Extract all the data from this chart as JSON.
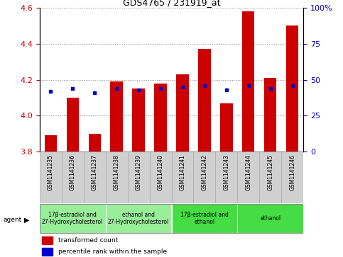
{
  "title": "GDS4765 / 231919_at",
  "samples": [
    "GSM1141235",
    "GSM1141236",
    "GSM1141237",
    "GSM1141238",
    "GSM1141239",
    "GSM1141240",
    "GSM1141241",
    "GSM1141242",
    "GSM1141243",
    "GSM1141244",
    "GSM1141245",
    "GSM1141246"
  ],
  "transformed_count": [
    3.89,
    4.1,
    3.9,
    4.19,
    4.15,
    4.18,
    4.23,
    4.37,
    4.07,
    4.58,
    4.21,
    4.5
  ],
  "percentile_rank_pct": [
    42,
    44,
    41,
    44,
    43,
    44,
    45,
    46,
    43,
    46,
    44,
    46
  ],
  "ylim_left": [
    3.8,
    4.6
  ],
  "ylim_right": [
    0,
    100
  ],
  "yticks_left": [
    3.8,
    4.0,
    4.2,
    4.4,
    4.6
  ],
  "yticks_right": [
    0,
    25,
    50,
    75,
    100
  ],
  "bar_color": "#cc0000",
  "dot_color": "#0000cc",
  "baseline": 3.8,
  "agents": [
    {
      "label": "17β-estradiol and\n27-Hydroxycholesterol",
      "start": 0,
      "end": 3,
      "color": "#99ee99"
    },
    {
      "label": "ethanol and\n27-Hydroxycholesterol",
      "start": 3,
      "end": 6,
      "color": "#99ee99"
    },
    {
      "label": "17β-estradiol and\nethanol",
      "start": 6,
      "end": 9,
      "color": "#44dd44"
    },
    {
      "label": "ethanol",
      "start": 9,
      "end": 12,
      "color": "#44dd44"
    }
  ],
  "legend_red": "transformed count",
  "legend_blue": "percentile rank within the sample",
  "axis_color_left": "#cc0000",
  "axis_color_right": "#0000cc",
  "grid_color": "#888888",
  "cell_bg": "#d0d0d0",
  "cell_line": "#aaaaaa"
}
